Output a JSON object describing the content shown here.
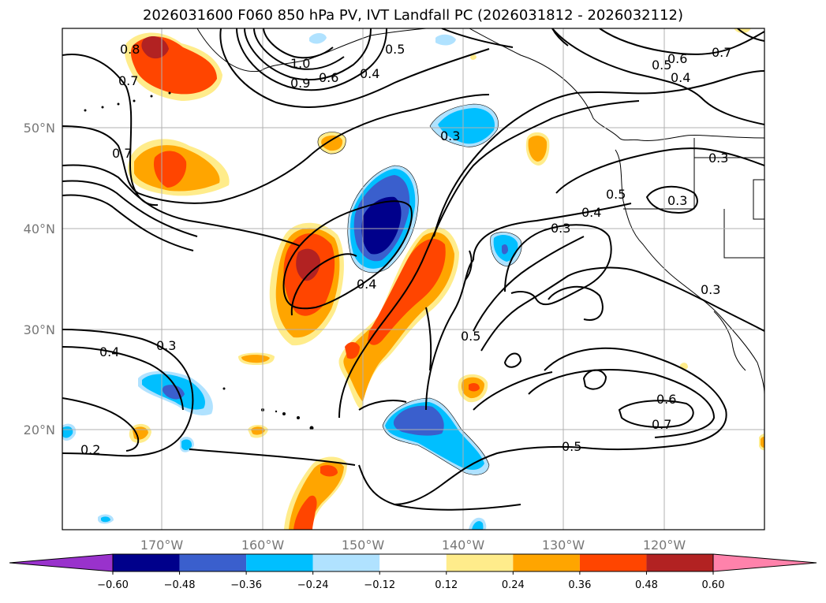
{
  "title": "2026031600 F060 850 hPa PV, IVT Landfall PC (2026031812 - 2026032112)",
  "axes": {
    "lon_ticks": [
      "170°W",
      "160°W",
      "150°W",
      "140°W",
      "130°W",
      "120°W"
    ],
    "lat_ticks": [
      "50°N",
      "40°N",
      "30°N",
      "20°N"
    ]
  },
  "colorbar": {
    "tick_labels": [
      "−0.60",
      "−0.48",
      "−0.36",
      "−0.24",
      "−0.12",
      "0.12",
      "0.24",
      "0.36",
      "0.48",
      "0.60"
    ],
    "colors": [
      "#9932cc",
      "#00008b",
      "#3a5fcd",
      "#00bfff",
      "#b0e2ff",
      "#ffffff",
      "#ffec8b",
      "#ffa500",
      "#ff4500",
      "#b22222",
      "#ff82ab"
    ]
  },
  "contour_labels": [
    "0.8",
    "0.7",
    "1.0",
    "0.9",
    "0.6",
    "0.4",
    "0.5",
    "0.6",
    "0.5",
    "0.4",
    "0.7",
    "0.7",
    "0.3",
    "0.3",
    "0.5",
    "0.3",
    "0.4",
    "0.3",
    "0.4",
    "0.3",
    "0.5",
    "0.4",
    "0.3",
    "0.6",
    "0.7",
    "0.5",
    "0.2"
  ]
}
